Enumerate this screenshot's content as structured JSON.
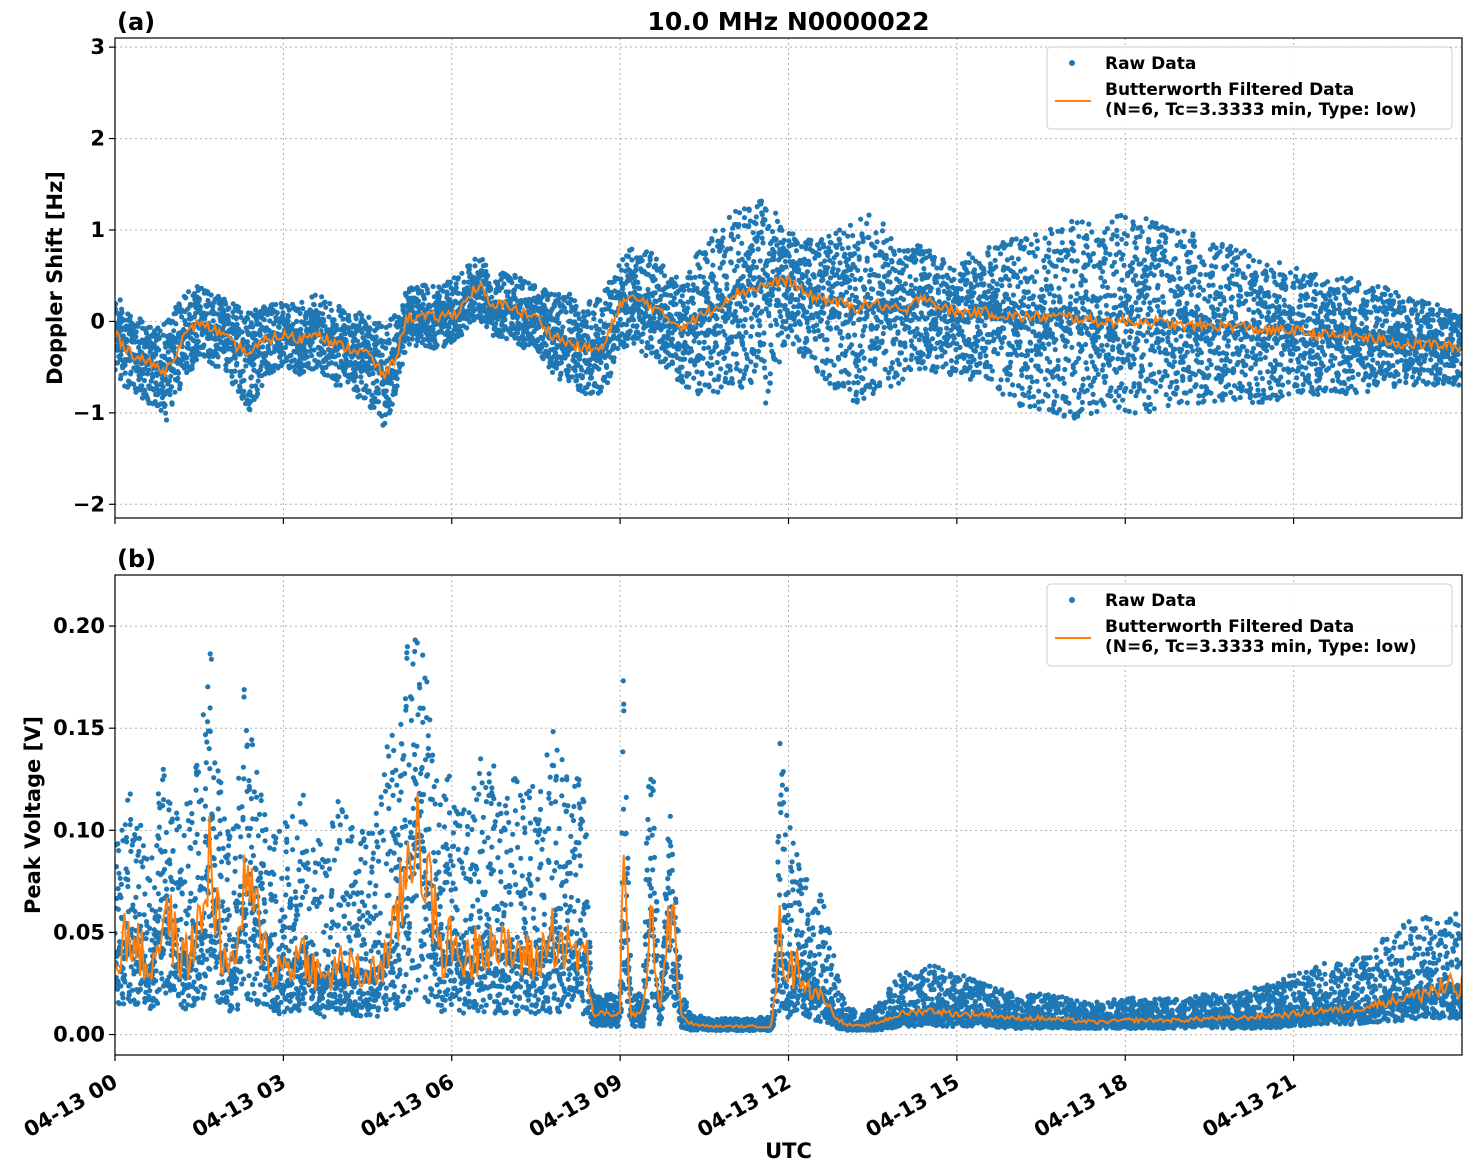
{
  "chart_data": [
    {
      "type": "line",
      "panel": "(a)",
      "title": "10.0 MHz N0000022",
      "ylabel": "Doppler Shift [Hz]",
      "xlabel": "",
      "xlim_hours": [
        0,
        24
      ],
      "ylim": [
        -2.15,
        3.1
      ],
      "yticks": [
        -2,
        -1,
        0,
        1,
        2,
        3
      ],
      "ytick_labels": [
        "−2",
        "−1",
        "0",
        "1",
        "2",
        "3"
      ],
      "grid": true,
      "legend_position": "top-right",
      "legend": [
        {
          "label": "Raw Data",
          "marker": "dot",
          "color": "#1f77b4"
        },
        {
          "label": "Butterworth Filtered Data\n(N=6, Tc=3.3333 min, Type: low)",
          "marker": "line",
          "color": "#ff7f0e"
        }
      ],
      "series": [
        {
          "name": "Butterworth Filtered Data",
          "color": "#ff7f0e",
          "x_hours": [
            0,
            0.3,
            0.6,
            0.9,
            1.2,
            1.5,
            1.8,
            2.1,
            2.4,
            2.7,
            3.0,
            3.3,
            3.6,
            3.9,
            4.2,
            4.5,
            4.8,
            5.0,
            5.2,
            5.5,
            5.8,
            6.1,
            6.4,
            6.5,
            6.7,
            7.0,
            7.2,
            7.5,
            7.8,
            8.1,
            8.4,
            8.7,
            9.0,
            9.2,
            9.5,
            9.8,
            10.1,
            10.4,
            10.7,
            11.0,
            11.3,
            11.6,
            12.0,
            12.3,
            12.6,
            12.9,
            13.2,
            13.5,
            13.8,
            14.1,
            14.4,
            14.7,
            15.0,
            15.5,
            16.0,
            16.5,
            17.0,
            17.5,
            18.0,
            18.5,
            19.0,
            19.5,
            20.0,
            20.5,
            21.0,
            21.5,
            22.0,
            22.5,
            23.0,
            23.5,
            24.0
          ],
          "y": [
            -0.15,
            -0.35,
            -0.45,
            -0.55,
            -0.2,
            0.0,
            -0.1,
            -0.25,
            -0.35,
            -0.2,
            -0.15,
            -0.2,
            -0.1,
            -0.25,
            -0.3,
            -0.35,
            -0.6,
            -0.4,
            0.05,
            0.05,
            0.05,
            0.1,
            0.35,
            0.4,
            0.15,
            0.2,
            0.1,
            0.05,
            -0.15,
            -0.25,
            -0.3,
            -0.3,
            0.2,
            0.25,
            0.2,
            0.05,
            -0.05,
            0.05,
            0.15,
            0.3,
            0.35,
            0.4,
            0.45,
            0.3,
            0.25,
            0.2,
            0.15,
            0.2,
            0.15,
            0.1,
            0.3,
            0.15,
            0.1,
            0.1,
            0.05,
            0.05,
            0.05,
            0.0,
            0.0,
            0.0,
            -0.05,
            -0.05,
            -0.05,
            -0.1,
            -0.1,
            -0.15,
            -0.15,
            -0.2,
            -0.25,
            -0.25,
            -0.3
          ]
        },
        {
          "name": "Raw Data",
          "color": "#1f77b4",
          "x_hours": [
            0,
            0.3,
            0.6,
            0.9,
            1.2,
            1.5,
            1.8,
            2.1,
            2.4,
            2.7,
            3.0,
            3.3,
            3.6,
            3.9,
            4.2,
            4.5,
            4.8,
            5.0,
            5.2,
            5.5,
            5.8,
            6.1,
            6.4,
            6.5,
            6.7,
            7.0,
            7.2,
            7.5,
            7.8,
            8.1,
            8.4,
            8.7,
            9.0,
            9.2,
            9.5,
            9.8,
            10.1,
            10.4,
            10.7,
            11.0,
            11.3,
            11.6,
            12.0,
            12.3,
            12.6,
            12.9,
            13.2,
            13.5,
            13.8,
            14.1,
            14.4,
            14.7,
            15.0,
            15.5,
            16.0,
            16.5,
            17.0,
            17.5,
            18.0,
            18.5,
            19.0,
            19.5,
            20.0,
            20.5,
            21.0,
            21.5,
            22.0,
            22.5,
            23.0,
            23.5,
            24.0
          ],
          "y_low": [
            -0.6,
            -0.8,
            -0.9,
            -1.1,
            -0.7,
            -0.4,
            -0.5,
            -0.7,
            -1.0,
            -0.6,
            -0.5,
            -0.6,
            -0.5,
            -0.7,
            -0.8,
            -0.9,
            -1.2,
            -0.8,
            -0.3,
            -0.3,
            -0.3,
            -0.2,
            0.0,
            0.0,
            -0.2,
            -0.2,
            -0.3,
            -0.3,
            -0.6,
            -0.7,
            -0.8,
            -0.8,
            -0.3,
            -0.3,
            -0.4,
            -0.5,
            -0.7,
            -0.8,
            -0.8,
            -0.7,
            -0.8,
            -0.9,
            -0.2,
            -0.4,
            -0.6,
            -0.8,
            -0.9,
            -0.8,
            -0.8,
            -0.6,
            -0.5,
            -0.6,
            -0.6,
            -0.7,
            -0.9,
            -1.0,
            -1.1,
            -1.0,
            -1.0,
            -1.0,
            -0.9,
            -0.9,
            -0.9,
            -0.9,
            -0.8,
            -0.8,
            -0.8,
            -0.8,
            -0.7,
            -0.7,
            -0.7
          ],
          "y_high": [
            0.3,
            0.1,
            0.0,
            0.0,
            0.3,
            0.4,
            0.3,
            0.2,
            0.1,
            0.2,
            0.2,
            0.2,
            0.3,
            0.2,
            0.1,
            0.1,
            0.0,
            0.1,
            0.4,
            0.4,
            0.4,
            0.5,
            0.7,
            0.75,
            0.5,
            0.55,
            0.5,
            0.4,
            0.3,
            0.3,
            0.2,
            0.3,
            0.7,
            0.8,
            0.8,
            0.6,
            0.5,
            0.8,
            1.0,
            1.2,
            1.3,
            1.4,
            1.0,
            0.9,
            0.9,
            1.0,
            1.1,
            1.2,
            1.0,
            0.8,
            0.9,
            0.7,
            0.7,
            0.8,
            0.9,
            1.0,
            1.1,
            1.1,
            1.2,
            1.1,
            1.0,
            0.9,
            0.8,
            0.7,
            0.6,
            0.5,
            0.5,
            0.4,
            0.3,
            0.2,
            0.1
          ]
        }
      ]
    },
    {
      "type": "line",
      "panel": "(b)",
      "title": "",
      "ylabel": "Peak Voltage [V]",
      "xlabel": "UTC",
      "xlim_hours": [
        0,
        24
      ],
      "ylim": [
        -0.01,
        0.225
      ],
      "yticks": [
        0.0,
        0.05,
        0.1,
        0.15,
        0.2
      ],
      "ytick_labels": [
        "0.00",
        "0.05",
        "0.10",
        "0.15",
        "0.20"
      ],
      "xticks_hours": [
        0,
        3,
        6,
        9,
        12,
        15,
        18,
        21
      ],
      "xtick_labels": [
        "04-13 00",
        "04-13 03",
        "04-13 06",
        "04-13 09",
        "04-13 12",
        "04-13 15",
        "04-13 18",
        "04-13 21"
      ],
      "grid": true,
      "legend_position": "top-right",
      "legend": [
        {
          "label": "Raw Data",
          "marker": "dot",
          "color": "#1f77b4"
        },
        {
          "label": "Butterworth Filtered Data\n(N=6, Tc=3.3333 min, Type: low)",
          "marker": "line",
          "color": "#ff7f0e"
        }
      ],
      "series": [
        {
          "name": "Butterworth Filtered Data",
          "color": "#ff7f0e",
          "x_hours": [
            0,
            0.3,
            0.6,
            0.9,
            1.2,
            1.5,
            1.7,
            1.9,
            2.1,
            2.3,
            2.5,
            2.8,
            3.1,
            3.4,
            3.7,
            4.0,
            4.3,
            4.6,
            4.9,
            5.2,
            5.4,
            5.6,
            5.8,
            6.0,
            6.3,
            6.6,
            6.9,
            7.2,
            7.5,
            7.8,
            8.1,
            8.4,
            8.5,
            8.7,
            9.0,
            9.05,
            9.2,
            9.4,
            9.55,
            9.7,
            9.9,
            10.1,
            10.3,
            10.6,
            11.0,
            11.4,
            11.7,
            11.85,
            12.0,
            12.2,
            12.4,
            12.6,
            12.8,
            13.0,
            13.3,
            13.6,
            14.0,
            14.5,
            15.0,
            15.5,
            16.0,
            16.5,
            17.0,
            17.5,
            18.0,
            18.5,
            19.0,
            19.5,
            20.0,
            20.5,
            21.0,
            21.5,
            22.0,
            22.5,
            23.0,
            23.5,
            24.0
          ],
          "y": [
            0.04,
            0.05,
            0.03,
            0.06,
            0.035,
            0.05,
            0.09,
            0.04,
            0.03,
            0.07,
            0.06,
            0.03,
            0.035,
            0.04,
            0.025,
            0.035,
            0.03,
            0.03,
            0.04,
            0.08,
            0.11,
            0.07,
            0.04,
            0.045,
            0.035,
            0.05,
            0.04,
            0.04,
            0.035,
            0.05,
            0.04,
            0.04,
            0.01,
            0.01,
            0.01,
            0.08,
            0.01,
            0.01,
            0.07,
            0.01,
            0.065,
            0.008,
            0.005,
            0.004,
            0.004,
            0.004,
            0.004,
            0.05,
            0.03,
            0.035,
            0.02,
            0.02,
            0.01,
            0.005,
            0.004,
            0.006,
            0.01,
            0.012,
            0.01,
            0.01,
            0.008,
            0.008,
            0.007,
            0.006,
            0.007,
            0.007,
            0.007,
            0.008,
            0.008,
            0.009,
            0.01,
            0.012,
            0.012,
            0.015,
            0.018,
            0.022,
            0.022
          ]
        },
        {
          "name": "Raw Data",
          "color": "#1f77b4",
          "x_hours": [
            0,
            0.3,
            0.6,
            0.9,
            1.2,
            1.5,
            1.7,
            1.9,
            2.1,
            2.3,
            2.5,
            2.8,
            3.1,
            3.4,
            3.7,
            4.0,
            4.3,
            4.6,
            4.9,
            5.2,
            5.4,
            5.6,
            5.8,
            6.0,
            6.3,
            6.6,
            6.9,
            7.2,
            7.5,
            7.8,
            8.1,
            8.4,
            8.5,
            8.7,
            9.0,
            9.05,
            9.2,
            9.4,
            9.55,
            9.7,
            9.9,
            10.1,
            10.3,
            10.6,
            11.0,
            11.4,
            11.7,
            11.85,
            12.0,
            12.2,
            12.4,
            12.6,
            12.8,
            13.0,
            13.3,
            13.6,
            14.0,
            14.5,
            15.0,
            15.5,
            16.0,
            16.5,
            17.0,
            17.5,
            18.0,
            18.5,
            19.0,
            19.5,
            20.0,
            20.5,
            21.0,
            21.5,
            22.0,
            22.5,
            23.0,
            23.5,
            24.0
          ],
          "y_low": [
            0.015,
            0.015,
            0.012,
            0.015,
            0.012,
            0.015,
            0.02,
            0.012,
            0.01,
            0.015,
            0.015,
            0.01,
            0.01,
            0.01,
            0.008,
            0.01,
            0.008,
            0.008,
            0.01,
            0.015,
            0.02,
            0.015,
            0.01,
            0.01,
            0.01,
            0.01,
            0.01,
            0.01,
            0.01,
            0.01,
            0.01,
            0.01,
            0.004,
            0.004,
            0.004,
            0.02,
            0.004,
            0.004,
            0.02,
            0.004,
            0.02,
            0.003,
            0.002,
            0.002,
            0.002,
            0.002,
            0.002,
            0.01,
            0.008,
            0.008,
            0.006,
            0.006,
            0.004,
            0.002,
            0.002,
            0.002,
            0.004,
            0.004,
            0.004,
            0.004,
            0.003,
            0.003,
            0.003,
            0.003,
            0.003,
            0.003,
            0.003,
            0.003,
            0.003,
            0.003,
            0.004,
            0.005,
            0.005,
            0.006,
            0.007,
            0.008,
            0.008
          ],
          "y_high": [
            0.1,
            0.12,
            0.09,
            0.14,
            0.1,
            0.15,
            0.19,
            0.12,
            0.1,
            0.17,
            0.14,
            0.1,
            0.11,
            0.12,
            0.09,
            0.12,
            0.1,
            0.1,
            0.15,
            0.19,
            0.2,
            0.17,
            0.12,
            0.13,
            0.11,
            0.15,
            0.13,
            0.13,
            0.12,
            0.15,
            0.13,
            0.13,
            0.02,
            0.02,
            0.02,
            0.19,
            0.02,
            0.02,
            0.17,
            0.02,
            0.12,
            0.02,
            0.01,
            0.008,
            0.008,
            0.008,
            0.01,
            0.16,
            0.11,
            0.1,
            0.06,
            0.07,
            0.04,
            0.015,
            0.01,
            0.015,
            0.03,
            0.035,
            0.03,
            0.025,
            0.02,
            0.02,
            0.018,
            0.016,
            0.018,
            0.018,
            0.018,
            0.02,
            0.02,
            0.025,
            0.03,
            0.035,
            0.035,
            0.045,
            0.055,
            0.06,
            0.06
          ]
        }
      ]
    }
  ]
}
